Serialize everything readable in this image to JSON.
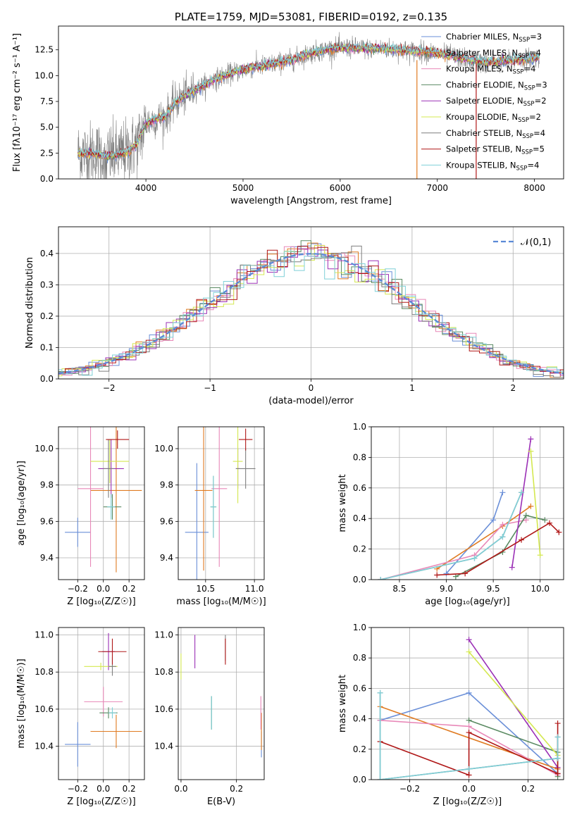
{
  "colors": [
    "#6a8fd8",
    "#e07b22",
    "#e888b8",
    "#5a8a62",
    "#9b30b6",
    "#d4e850",
    "#7f7f7f",
    "#b01818",
    "#7fd0d8"
  ],
  "chart_data": [
    {
      "id": "spectrum",
      "type": "line",
      "title": "PLATE=1759, MJD=53081, FIBERID=0192, z=0.135",
      "xlabel": "wavelength [Angstrom, rest frame]",
      "ylabel": "Flux [fλ10⁻¹⁷ erg cm⁻² s⁻¹ A⁻¹]",
      "xlim": [
        3100,
        8300
      ],
      "ylim": [
        0,
        14.8
      ],
      "xticks": [
        4000,
        5000,
        6000,
        7000,
        8000
      ],
      "yticks": [
        0.0,
        2.5,
        5.0,
        7.5,
        10.0,
        12.5
      ],
      "grid": false,
      "legend_position": "top-right",
      "continuum": {
        "x": [
          3300,
          3500,
          3600,
          3700,
          3800,
          3900,
          4000,
          4100,
          4200,
          4300,
          4400,
          4500,
          4700,
          4900,
          5100,
          5300,
          5500,
          5700,
          5900,
          6100,
          6300,
          6500,
          6700,
          6900,
          7100,
          7300,
          7500,
          7700,
          7900,
          8050
        ],
        "y": [
          2.5,
          2.4,
          2.2,
          2.3,
          2.6,
          3.2,
          5.4,
          5.8,
          6.0,
          7.4,
          8.0,
          8.6,
          9.6,
          10.3,
          10.8,
          11.1,
          11.5,
          12.2,
          12.6,
          12.7,
          12.6,
          12.6,
          12.4,
          12.3,
          12.0,
          11.6,
          11.3,
          11.4,
          11.6,
          11.8
        ]
      },
      "series": [
        {
          "name": "Chabrier MILES, N_SSP=3",
          "label_main": "Chabrier MILES, N",
          "label_sub": "SSP",
          "label_tail": "=3"
        },
        {
          "name": "Salpeter MILES, N_SSP=4",
          "label_main": "Salpeter MILES, N",
          "label_sub": "SSP",
          "label_tail": "=4"
        },
        {
          "name": "Kroupa MILES, N_SSP=4",
          "label_main": "Kroupa MILES, N",
          "label_sub": "SSP",
          "label_tail": "=4"
        },
        {
          "name": "Chabrier ELODIE, N_SSP=3",
          "label_main": "Chabrier ELODIE, N",
          "label_sub": "SSP",
          "label_tail": "=3"
        },
        {
          "name": "Salpeter ELODIE, N_SSP=2",
          "label_main": "Salpeter ELODIE, N",
          "label_sub": "SSP",
          "label_tail": "=2"
        },
        {
          "name": "Kroupa ELODIE, N_SSP=2",
          "label_main": "Kroupa ELODIE, N",
          "label_sub": "SSP",
          "label_tail": "=2"
        },
        {
          "name": "Chabrier STELIB, N_SSP=4",
          "label_main": "Chabrier STELIB, N",
          "label_sub": "SSP",
          "label_tail": "=4"
        },
        {
          "name": "Salpeter STELIB, N_SSP=5",
          "label_main": "Salpeter STELIB, N",
          "label_sub": "SSP",
          "label_tail": "=5"
        },
        {
          "name": "Kroupa STELIB, N_SSP=4",
          "label_main": "Kroupa STELIB, N",
          "label_sub": "SSP",
          "label_tail": "=4"
        }
      ]
    },
    {
      "id": "residuals",
      "type": "histogram",
      "xlabel": "(data-model)/error",
      "ylabel": "Normed distribution",
      "xlim": [
        -2.5,
        2.5
      ],
      "ylim": [
        0,
        0.485
      ],
      "xticks": [
        -2,
        -1,
        0,
        1,
        2
      ],
      "yticks": [
        0.0,
        0.1,
        0.2,
        0.3,
        0.4
      ],
      "grid": true,
      "bin_width": 0.1,
      "legend_position": "top-right",
      "reference": {
        "name": "𝒩(0,1)",
        "style": "dashed",
        "color": "#5b8ad6"
      }
    },
    {
      "id": "age-vs-Z",
      "type": "errorbar",
      "xlabel": "Z [log₁₀(Z/Z☉)]",
      "ylabel": "age  [log₁₀(age/yr)]",
      "xlim": [
        -0.35,
        0.32
      ],
      "ylim": [
        9.28,
        10.12
      ],
      "xticks": [
        -0.2,
        0.0,
        0.2
      ],
      "yticks": [
        9.4,
        9.6,
        9.8,
        10.0
      ],
      "grid": true,
      "points": [
        {
          "x": -0.2,
          "xerr": 0.1,
          "y": 9.54,
          "yerr": 0.08
        },
        {
          "x": 0.1,
          "xerr": 0.2,
          "y": 9.77,
          "yerr": 0.45
        },
        {
          "x": -0.1,
          "xerr": 0.1,
          "y": 9.78,
          "yerr": 0.43
        },
        {
          "x": 0.07,
          "xerr": 0.07,
          "y": 9.68,
          "yerr": 0.07
        },
        {
          "x": 0.06,
          "xerr": 0.1,
          "y": 9.89,
          "yerr": 0.16
        },
        {
          "x": 0.05,
          "xerr": 0.15,
          "y": 9.93,
          "yerr": 0.12
        },
        {
          "x": 0.04,
          "xerr": 0.04,
          "y": 9.89,
          "yerr": 0.16
        },
        {
          "x": 0.11,
          "xerr": 0.09,
          "y": 10.05,
          "yerr": 0.05
        },
        {
          "x": 0.06,
          "xerr": 0.03,
          "y": 9.68,
          "yerr": 0.07
        }
      ]
    },
    {
      "id": "age-vs-mass",
      "type": "errorbar",
      "xlabel": "mass [log₁₀(M/M☉)]",
      "xlim": [
        10.22,
        11.1
      ],
      "ylim": [
        9.28,
        10.12
      ],
      "xticks": [
        10.5,
        11.0
      ],
      "yticks": [
        9.4,
        9.6,
        9.8,
        10.0
      ],
      "grid": true,
      "points": [
        {
          "x": 10.41,
          "xerr": 0.12,
          "y": 9.54,
          "yerr": 0.38
        },
        {
          "x": 10.48,
          "xerr": 0.09,
          "y": 9.77,
          "yerr": 0.44
        },
        {
          "x": 10.64,
          "xerr": 0.08,
          "y": 9.78,
          "yerr": 0.43
        },
        {
          "x": 10.58,
          "xerr": 0.03,
          "y": 9.68,
          "yerr": 0.17
        },
        {
          "x": 10.83,
          "xerr": 0.02,
          "y": 9.89,
          "yerr": 0.11
        },
        {
          "x": 10.83,
          "xerr": 0.05,
          "y": 9.93,
          "yerr": 0.23
        },
        {
          "x": 10.91,
          "xerr": 0.1,
          "y": 9.89,
          "yerr": 0.11
        },
        {
          "x": 10.91,
          "xerr": 0.07,
          "y": 10.05,
          "yerr": 0.06
        },
        {
          "x": 10.58,
          "xerr": 0.03,
          "y": 9.68,
          "yerr": 0.17
        }
      ]
    },
    {
      "id": "weight-vs-age",
      "type": "line",
      "xlabel": "age  [log₁₀(age/yr)]",
      "ylabel": "mass weight",
      "xlim": [
        8.2,
        10.25
      ],
      "ylim": [
        0,
        1
      ],
      "xticks": [
        8.5,
        9.0,
        9.5,
        10.0
      ],
      "yticks": [
        0.0,
        0.2,
        0.4,
        0.6,
        0.8,
        1.0
      ],
      "grid": true,
      "series": [
        {
          "x": [
            9.0,
            9.5,
            9.6
          ],
          "y": [
            0.04,
            0.39,
            0.57
          ]
        },
        {
          "x": [
            8.9,
            9.6,
            9.9
          ],
          "y": [
            0.07,
            0.35,
            0.48
          ]
        },
        {
          "x": [
            8.3,
            9.3,
            9.6,
            9.85
          ],
          "y": [
            0.0,
            0.16,
            0.36,
            0.39
          ]
        },
        {
          "x": [
            9.1,
            9.6,
            9.85,
            10.05
          ],
          "y": [
            0.02,
            0.18,
            0.42,
            0.39
          ]
        },
        {
          "x": [
            9.7,
            9.9
          ],
          "y": [
            0.08,
            0.92
          ]
        },
        {
          "x": [
            9.9,
            10.0
          ],
          "y": [
            0.84,
            0.16
          ]
        },
        {
          "x": [
            8.3,
            9.3,
            9.6,
            9.8
          ],
          "y": [
            0.0,
            0.14,
            0.28,
            0.57
          ]
        },
        {
          "x": [
            8.9,
            9.2,
            9.8,
            10.1,
            10.2
          ],
          "y": [
            0.03,
            0.04,
            0.26,
            0.37,
            0.31
          ]
        },
        {
          "x": [
            8.3,
            9.3,
            9.6,
            9.8
          ],
          "y": [
            0.0,
            0.14,
            0.28,
            0.57
          ]
        }
      ]
    },
    {
      "id": "mass-vs-Z",
      "type": "errorbar",
      "xlabel": "Z [log₁₀(Z/Z☉)]",
      "ylabel": "mass [log₁₀(M/M☉)]",
      "xlim": [
        -0.35,
        0.32
      ],
      "ylim": [
        10.22,
        11.04
      ],
      "xticks": [
        -0.2,
        0.0,
        0.2
      ],
      "yticks": [
        10.4,
        10.6,
        10.8,
        11.0
      ],
      "grid": true,
      "points": [
        {
          "x": -0.2,
          "xerr": 0.1,
          "y": 10.41,
          "yerr": 0.12
        },
        {
          "x": 0.1,
          "xerr": 0.2,
          "y": 10.48,
          "yerr": 0.09
        },
        {
          "x": 0.0,
          "xerr": 0.15,
          "y": 10.64,
          "yerr": 0.08
        },
        {
          "x": 0.04,
          "xerr": 0.07,
          "y": 10.58,
          "yerr": 0.03
        },
        {
          "x": 0.04,
          "xerr": 0.05,
          "y": 10.91,
          "yerr": 0.1
        },
        {
          "x": -0.02,
          "xerr": 0.13,
          "y": 10.83,
          "yerr": 0.02
        },
        {
          "x": 0.07,
          "xerr": 0.03,
          "y": 10.83,
          "yerr": 0.05
        },
        {
          "x": 0.07,
          "xerr": 0.11,
          "y": 10.91,
          "yerr": 0.07
        },
        {
          "x": 0.07,
          "xerr": 0.03,
          "y": 10.58,
          "yerr": 0.03
        }
      ]
    },
    {
      "id": "mass-vs-ebv",
      "type": "errorbar",
      "xlabel": "E(B-V)",
      "xlim": [
        -0.01,
        0.3
      ],
      "ylim": [
        10.22,
        11.04
      ],
      "xticks": [
        0.0,
        0.2
      ],
      "yticks": [
        10.4,
        10.6,
        10.8,
        11.0
      ],
      "grid": true,
      "points": [
        {
          "x": 0.29,
          "xerr": 0,
          "y": 10.41,
          "yerr": 0.07
        },
        {
          "x": 0.29,
          "xerr": 0,
          "y": 10.48,
          "yerr": 0.1
        },
        {
          "x": 0.288,
          "xerr": 0,
          "y": 10.58,
          "yerr": 0.09
        },
        {
          "x": 0.11,
          "xerr": 0,
          "y": 10.58,
          "yerr": 0.09
        },
        {
          "x": 0.05,
          "xerr": 0,
          "y": 10.91,
          "yerr": 0.09
        },
        {
          "x": 0.0,
          "xerr": 0,
          "y": 10.83,
          "yerr": 0.07
        },
        {
          "x": 0.16,
          "xerr": 0,
          "y": 10.93,
          "yerr": 0.07
        },
        {
          "x": 0.16,
          "xerr": 0,
          "y": 10.91,
          "yerr": 0.07
        },
        {
          "x": 0.11,
          "xerr": 0,
          "y": 10.58,
          "yerr": 0.09
        }
      ]
    },
    {
      "id": "weight-vs-Z",
      "type": "line",
      "xlabel": "Z [log₁₀(Z/Z☉)]",
      "ylabel": "mass weight",
      "xlim": [
        -0.33,
        0.32
      ],
      "ylim": [
        0,
        1
      ],
      "xticks": [
        -0.2,
        0.0,
        0.2
      ],
      "yticks": [
        0.0,
        0.2,
        0.4,
        0.6,
        0.8,
        1.0
      ],
      "grid": true,
      "series": [
        {
          "x": [
            -0.3,
            0.0,
            0.3
          ],
          "y": [
            0.39,
            0.57,
            0.04
          ]
        },
        {
          "x": [
            -0.3,
            0.3
          ],
          "y": [
            0.48,
            0.07
          ]
        },
        {
          "x": [
            -0.3,
            0.0,
            0.3
          ],
          "y": [
            0.39,
            0.35,
            0.03
          ]
        },
        {
          "x": [
            0.0,
            0.3,
            0.3
          ],
          "y": [
            0.39,
            0.18,
            0.02
          ]
        },
        {
          "x": [
            0.0,
            0.3
          ],
          "y": [
            0.92,
            0.08
          ]
        },
        {
          "x": [
            0.0,
            0.3
          ],
          "y": [
            0.84,
            0.16
          ]
        },
        {
          "x": [
            -0.3,
            -0.3,
            0.0,
            0.3,
            0.3
          ],
          "y": [
            0.57,
            0.0,
            0.07,
            0.14,
            0.28
          ]
        },
        {
          "x": [
            -0.3,
            0.0,
            0.0,
            0.3,
            0.3
          ],
          "y": [
            0.25,
            0.03,
            0.31,
            0.04,
            0.37
          ]
        },
        {
          "x": [
            -0.3,
            -0.3,
            0.0,
            0.3,
            0.3
          ],
          "y": [
            0.57,
            0.0,
            0.07,
            0.14,
            0.28
          ]
        }
      ]
    }
  ]
}
